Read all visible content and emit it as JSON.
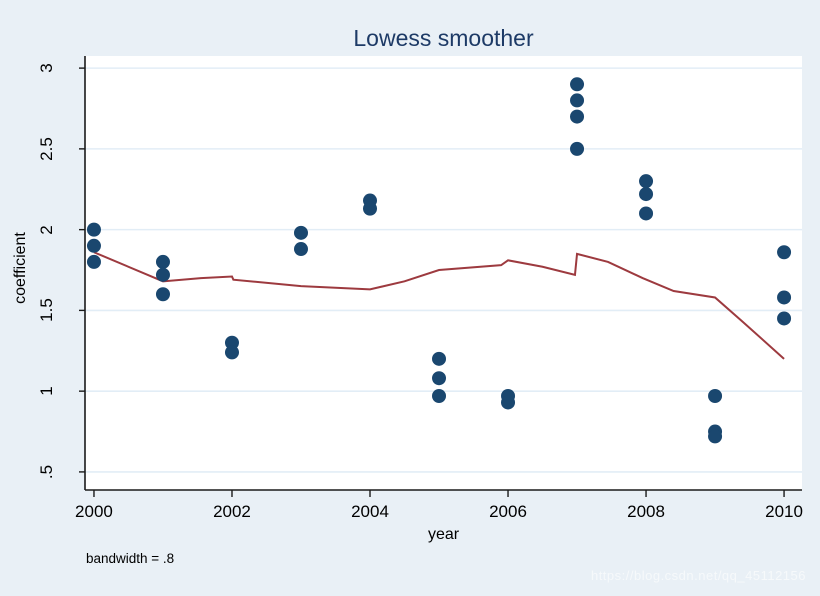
{
  "figure": {
    "title": "Lowess smoother",
    "x_axis_label": "year",
    "y_axis_label": "coefficient",
    "note": "bandwidth = .8",
    "watermark": "https://blog.csdn.net/qq_45112156"
  },
  "colors": {
    "background": "#e9f0f6",
    "plot_background": "#ffffff",
    "gridline": "#e2edf6",
    "axis": "#1a1a1a",
    "title_text": "#1d3a66",
    "scatter_dot": "#1a476f",
    "lowess_line": "#9d3a3f",
    "tick_text": "#000000",
    "watermark_text": "#f6f9fb"
  },
  "chart_data": {
    "type": "scatter",
    "title": "Lowess smoother",
    "xlabel": "year",
    "ylabel": "coefficient",
    "note": "bandwidth = .8",
    "grid": "horizontal-only",
    "legend": "none",
    "xlim": [
      1999.87,
      2010.26
    ],
    "ylim": [
      0.388,
      3.075
    ],
    "xticks": [
      {
        "value": 2000,
        "label": "2000"
      },
      {
        "value": 2002,
        "label": "2002"
      },
      {
        "value": 2004,
        "label": "2004"
      },
      {
        "value": 2006,
        "label": "2006"
      },
      {
        "value": 2008,
        "label": "2008"
      },
      {
        "value": 2010,
        "label": "2010"
      }
    ],
    "yticks": [
      {
        "value": 0.5,
        "label": ".5"
      },
      {
        "value": 1,
        "label": "1"
      },
      {
        "value": 1.5,
        "label": "1.5"
      },
      {
        "value": 2,
        "label": "2"
      },
      {
        "value": 2.5,
        "label": "2.5"
      },
      {
        "value": 3,
        "label": "3"
      }
    ],
    "series": [
      {
        "name": "coefficient-scatter",
        "type": "scatter",
        "marker": "circle",
        "points": [
          [
            2000,
            2.0
          ],
          [
            2000,
            1.9
          ],
          [
            2000,
            1.8
          ],
          [
            2001,
            1.8
          ],
          [
            2001,
            1.72
          ],
          [
            2001,
            1.6
          ],
          [
            2002,
            1.3
          ],
          [
            2002,
            1.24
          ],
          [
            2003,
            1.98
          ],
          [
            2003,
            1.88
          ],
          [
            2004,
            2.18
          ],
          [
            2004,
            2.13
          ],
          [
            2005,
            1.2
          ],
          [
            2005,
            1.08
          ],
          [
            2005,
            0.97
          ],
          [
            2006,
            0.97
          ],
          [
            2006,
            0.93
          ],
          [
            2007,
            2.9
          ],
          [
            2007,
            2.8
          ],
          [
            2007,
            2.7
          ],
          [
            2007,
            2.5
          ],
          [
            2008,
            2.3
          ],
          [
            2008,
            2.22
          ],
          [
            2008,
            2.1
          ],
          [
            2009,
            0.97
          ],
          [
            2009,
            0.75
          ],
          [
            2009,
            0.72
          ],
          [
            2010,
            1.86
          ],
          [
            2010,
            1.58
          ],
          [
            2010,
            1.45
          ]
        ]
      },
      {
        "name": "lowess-fit",
        "type": "line",
        "points": [
          [
            2000,
            1.86
          ],
          [
            2001,
            1.68
          ],
          [
            2001.55,
            1.7
          ],
          [
            2002,
            1.71
          ],
          [
            2002.02,
            1.69
          ],
          [
            2003,
            1.65
          ],
          [
            2004,
            1.63
          ],
          [
            2004.5,
            1.68
          ],
          [
            2005,
            1.75
          ],
          [
            2005.9,
            1.78
          ],
          [
            2006,
            1.81
          ],
          [
            2006.5,
            1.77
          ],
          [
            2006.97,
            1.72
          ],
          [
            2007,
            1.85
          ],
          [
            2007.45,
            1.8
          ],
          [
            2007.95,
            1.7
          ],
          [
            2008.4,
            1.62
          ],
          [
            2009,
            1.58
          ],
          [
            2009.4,
            1.43
          ],
          [
            2010,
            1.2
          ]
        ]
      }
    ]
  }
}
